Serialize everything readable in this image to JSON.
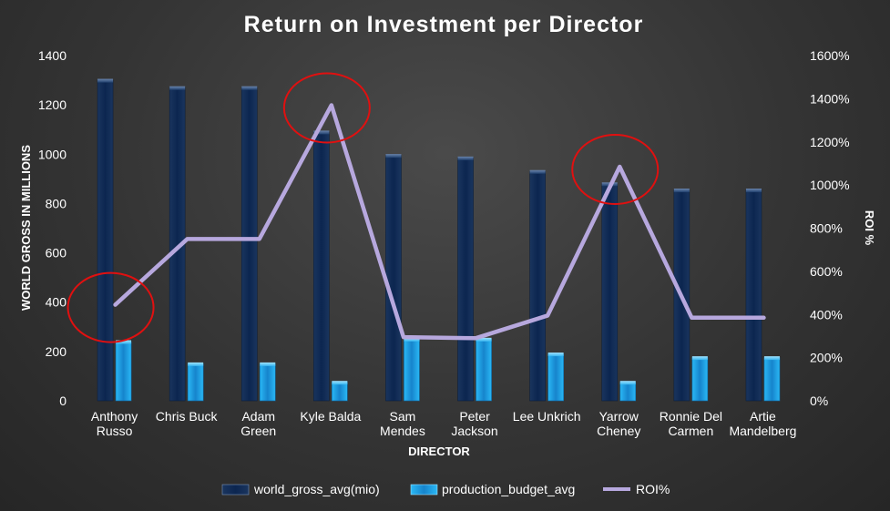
{
  "chart_data": {
    "type": "bar",
    "title": "Return on Investment per Director",
    "xlabel": "DIRECTOR",
    "ylabel": "WORLD GROSS IN MILLIONS",
    "y2label": "ROI %",
    "ylim": [
      0,
      1400
    ],
    "y2lim": [
      0,
      1600
    ],
    "yticks": [
      "0",
      "200",
      "400",
      "600",
      "800",
      "1000",
      "1200",
      "1400"
    ],
    "y2ticks": [
      "0%",
      "200%",
      "400%",
      "600%",
      "800%",
      "1000%",
      "1200%",
      "1400%",
      "1600%"
    ],
    "categories": [
      [
        "Anthony",
        "Russo"
      ],
      [
        "Chris Buck"
      ],
      [
        "Adam",
        "Green"
      ],
      [
        "Kyle Balda"
      ],
      [
        "Sam",
        "Mendes"
      ],
      [
        "Peter",
        "Jackson"
      ],
      [
        "Lee Unkrich"
      ],
      [
        "Yarrow",
        "Cheney"
      ],
      [
        "Ronnie Del",
        "Carmen"
      ],
      [
        "Artie",
        "Mandelberg"
      ]
    ],
    "series": [
      {
        "name": "world_gross_avg(mio)",
        "type": "bar",
        "axis": "left",
        "values": [
          1300,
          1270,
          1270,
          1090,
          995,
          985,
          930,
          880,
          855,
          855
        ]
      },
      {
        "name": "production_budget_avg",
        "type": "bar",
        "axis": "left",
        "values": [
          240,
          150,
          150,
          75,
          250,
          250,
          190,
          75,
          175,
          175
        ]
      },
      {
        "name": "ROI%",
        "type": "line",
        "axis": "right",
        "values": [
          445,
          750,
          750,
          1370,
          295,
          290,
          395,
          1085,
          385,
          385
        ]
      }
    ],
    "highlighted_categories": [
      "Anthony Russo",
      "Kyle Balda",
      "Yarrow Cheney"
    ],
    "legend_position": "bottom",
    "colors": {
      "world_gross": "#0f2a52",
      "production_budget": "#1ea0e6",
      "roi_line": "#b7a8de",
      "highlight_circle": "#e01010"
    }
  }
}
